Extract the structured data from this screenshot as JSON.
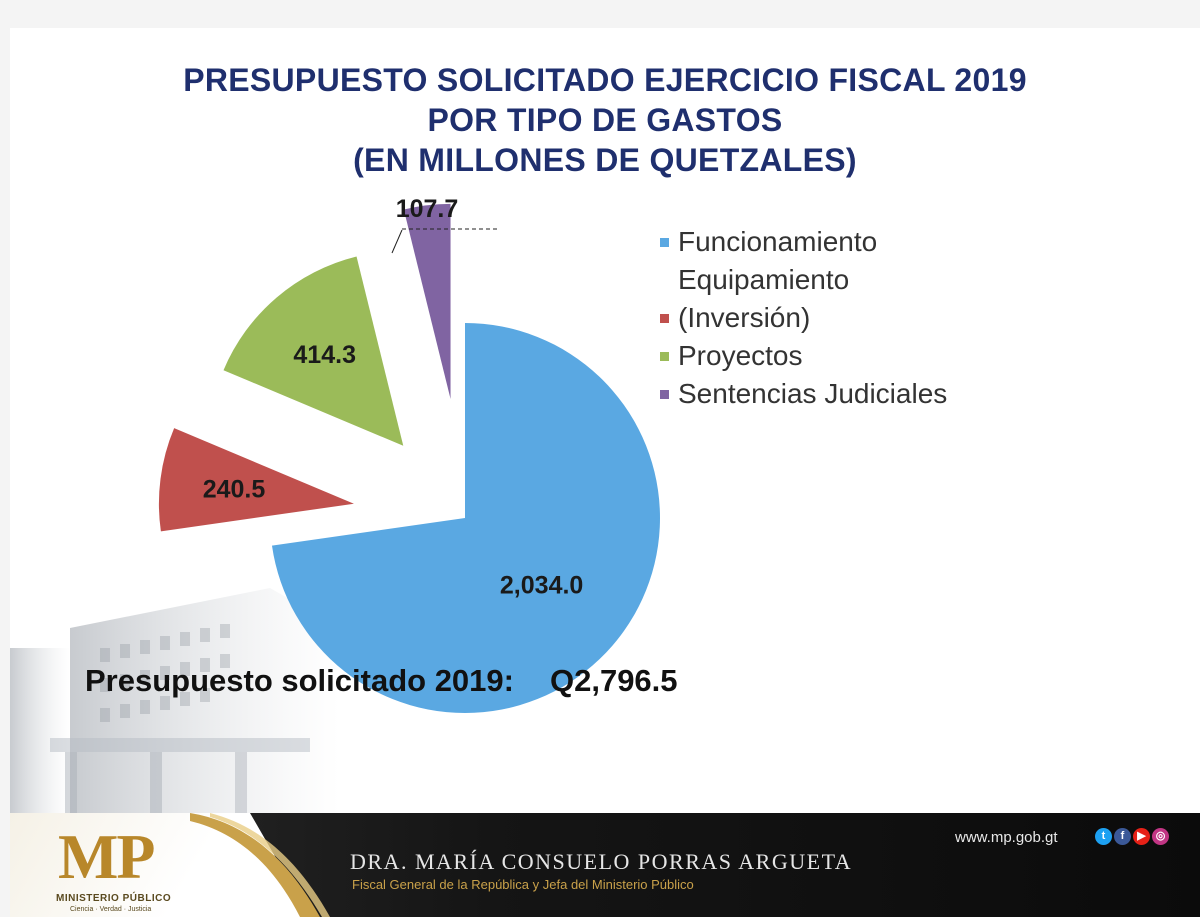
{
  "title": {
    "line1": "PRESUPUESTO SOLICITADO EJERCICIO FISCAL 2019",
    "line2": "POR TIPO DE GASTOS",
    "line3": "(EN MILLONES DE QUETZALES)"
  },
  "chart_data": {
    "type": "pie",
    "title": "PRESUPUESTO SOLICITADO EJERCICIO FISCAL 2019 POR TIPO DE GASTOS (EN MILLONES DE QUETZALES)",
    "categories": [
      "Funcionamiento",
      "Equipamiento (Inversión)",
      "Proyectos",
      "Sentencias Judiciales"
    ],
    "values": [
      2034.0,
      240.5,
      414.3,
      107.7
    ],
    "data_labels": [
      "2,034.0",
      "240.5",
      "414.3",
      "107.7"
    ],
    "colors": [
      "#5aa8e2",
      "#c0504d",
      "#9bbb59",
      "#8064a2"
    ],
    "legend_position": "right",
    "exploded": true
  },
  "legend": {
    "items": [
      {
        "label": "Funcionamiento",
        "color": "#5aa8e2"
      },
      {
        "label_line1": "Equipamiento",
        "label_line2": "(Inversión)",
        "color": "#c0504d"
      },
      {
        "label": "Proyectos",
        "color": "#9bbb59"
      },
      {
        "label": "Sentencias Judiciales",
        "color": "#8064a2"
      }
    ]
  },
  "total": {
    "label": "Presupuesto solicitado 2019:",
    "amount": "Q2,796.5"
  },
  "footer": {
    "logo_text": "MP",
    "logo_subtitle": "MINISTERIO PÚBLICO",
    "logo_motto": "Ciencia · Verdad · Justicia",
    "name": "DRA. MARÍA CONSUELO PORRAS ARGUETA",
    "role": "Fiscal General de la República y Jefa del Ministerio Público",
    "url": "www.mp.gob.gt",
    "social": [
      {
        "icon": "twitter-icon",
        "glyph": "t",
        "color": "#1da1f2"
      },
      {
        "icon": "facebook-icon",
        "glyph": "f",
        "color": "#3b5998"
      },
      {
        "icon": "youtube-icon",
        "glyph": "▶",
        "color": "#e62117"
      },
      {
        "icon": "instagram-icon",
        "glyph": "◎",
        "color": "#c13584"
      }
    ]
  }
}
